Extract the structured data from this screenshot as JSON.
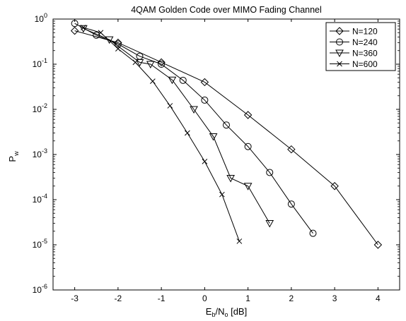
{
  "chart_data": {
    "type": "line",
    "title": "4QAM Golden Code over MIMO Fading Channel",
    "xlabel": {
      "main": "E",
      "sub1": "b",
      "mid": "/N",
      "sub2": "o",
      "tail": " [dB]"
    },
    "ylabel": {
      "main": "P",
      "sub": "w"
    },
    "xlim": [
      -3.5,
      4.5
    ],
    "ylim": [
      1e-06,
      1
    ],
    "yscale": "log",
    "grid": false,
    "legend_position": "top-right",
    "xticks": [
      {
        "value": -3,
        "label": "-3"
      },
      {
        "value": -2,
        "label": "-2"
      },
      {
        "value": -1,
        "label": "-1"
      },
      {
        "value": 0,
        "label": "0"
      },
      {
        "value": 1,
        "label": "1"
      },
      {
        "value": 2,
        "label": "2"
      },
      {
        "value": 3,
        "label": "3"
      },
      {
        "value": 4,
        "label": "4"
      }
    ],
    "yticks": [
      {
        "value": 1,
        "base": "10",
        "exp": "0"
      },
      {
        "value": 0.1,
        "base": "10",
        "exp": "-1"
      },
      {
        "value": 0.01,
        "base": "10",
        "exp": "-2"
      },
      {
        "value": 0.001,
        "base": "10",
        "exp": "-3"
      },
      {
        "value": 0.0001,
        "base": "10",
        "exp": "-4"
      },
      {
        "value": 1e-05,
        "base": "10",
        "exp": "-5"
      },
      {
        "value": 1e-06,
        "base": "10",
        "exp": "-6"
      }
    ],
    "series": [
      {
        "name": "N=120",
        "marker": "diamond",
        "x": [
          -3,
          -2,
          -1,
          0,
          1,
          2,
          3,
          4
        ],
        "y": [
          0.55,
          0.3,
          0.11,
          0.04,
          0.0075,
          0.0013,
          0.0002,
          1e-05
        ]
      },
      {
        "name": "N=240",
        "marker": "circle",
        "x": [
          -3,
          -2.5,
          -2,
          -1.5,
          -1,
          -0.5,
          0,
          0.5,
          1,
          1.5,
          2,
          2.5
        ],
        "y": [
          0.8,
          0.44,
          0.28,
          0.15,
          0.1,
          0.044,
          0.016,
          0.0045,
          0.0015,
          0.0004,
          8e-05,
          1.8e-05
        ]
      },
      {
        "name": "N=360",
        "marker": "triangle-down",
        "x": [
          -2.8,
          -2.2,
          -1.5,
          -1.25,
          -0.75,
          -0.25,
          0.2,
          0.6,
          1.0,
          1.5
        ],
        "y": [
          0.62,
          0.35,
          0.11,
          0.1,
          0.045,
          0.01,
          0.0025,
          0.0003,
          0.0002,
          3e-05
        ]
      },
      {
        "name": "N=600",
        "marker": "x",
        "x": [
          -2.8,
          -2.4,
          -2.0,
          -1.6,
          -1.2,
          -0.8,
          -0.4,
          0,
          0.4,
          0.8
        ],
        "y": [
          0.65,
          0.5,
          0.22,
          0.11,
          0.042,
          0.012,
          0.003,
          0.0007,
          0.00013,
          1.2e-05
        ]
      }
    ]
  }
}
